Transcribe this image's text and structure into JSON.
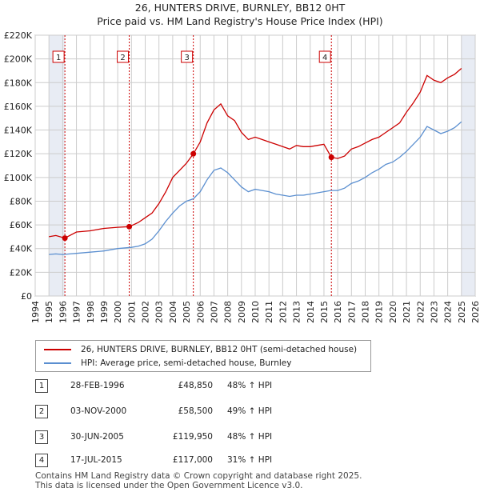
{
  "chart_data": {
    "type": "line",
    "title": "26, HUNTERS DRIVE, BURNLEY, BB12 0HT",
    "subtitle": "Price paid vs. HM Land Registry's House Price Index (HPI)",
    "xlabel": "",
    "ylabel": "",
    "xlim": [
      1994,
      2026
    ],
    "ylim": [
      0,
      220000
    ],
    "y_ticks": [
      {
        "value": 0,
        "label": "£0"
      },
      {
        "value": 20000,
        "label": "£20K"
      },
      {
        "value": 40000,
        "label": "£40K"
      },
      {
        "value": 60000,
        "label": "£60K"
      },
      {
        "value": 80000,
        "label": "£80K"
      },
      {
        "value": 100000,
        "label": "£100K"
      },
      {
        "value": 120000,
        "label": "£120K"
      },
      {
        "value": 140000,
        "label": "£140K"
      },
      {
        "value": 160000,
        "label": "£160K"
      },
      {
        "value": 180000,
        "label": "£180K"
      },
      {
        "value": 200000,
        "label": "£200K"
      },
      {
        "value": 220000,
        "label": "£220K"
      }
    ],
    "x_ticks": [
      "1994",
      "1995",
      "1996",
      "1997",
      "1998",
      "1999",
      "2000",
      "2001",
      "2002",
      "2003",
      "2004",
      "2005",
      "2006",
      "2007",
      "2008",
      "2009",
      "2010",
      "2011",
      "2012",
      "2013",
      "2014",
      "2015",
      "2016",
      "2017",
      "2018",
      "2019",
      "2020",
      "2021",
      "2022",
      "2023",
      "2024",
      "2025",
      "2026"
    ],
    "grid": true,
    "legend_position": "bottom",
    "shaded_ranges": [
      {
        "from": 1995.0,
        "to": 1996.16
      },
      {
        "from": 2025.0,
        "to": 2026.0
      }
    ],
    "series": [
      {
        "name": "26, HUNTERS DRIVE, BURNLEY, BB12 0HT (semi-detached house)",
        "color": "#cc0000",
        "x": [
          1995.0,
          1995.5,
          1996.16,
          1997.0,
          1998.0,
          1999.0,
          2000.0,
          2000.84,
          2001.5,
          2002.0,
          2002.5,
          2003.0,
          2003.5,
          2004.0,
          2004.5,
          2005.0,
          2005.5,
          2006.0,
          2006.5,
          2007.0,
          2007.5,
          2008.0,
          2008.5,
          2009.0,
          2009.5,
          2010.0,
          2010.5,
          2011.0,
          2011.5,
          2012.0,
          2012.5,
          2013.0,
          2013.5,
          2014.0,
          2014.5,
          2015.0,
          2015.54,
          2016.0,
          2016.5,
          2017.0,
          2017.5,
          2018.0,
          2018.5,
          2019.0,
          2019.5,
          2020.0,
          2020.5,
          2021.0,
          2021.5,
          2022.0,
          2022.5,
          2023.0,
          2023.5,
          2024.0,
          2024.5,
          2025.0
        ],
        "values": [
          50000,
          51000,
          48850,
          54000,
          55000,
          57000,
          58000,
          58500,
          62000,
          66000,
          70000,
          78000,
          88000,
          100000,
          106000,
          112000,
          119950,
          130000,
          146000,
          157000,
          162000,
          152000,
          148000,
          138000,
          132000,
          134000,
          132000,
          130000,
          128000,
          126000,
          124000,
          127000,
          126000,
          126000,
          127000,
          128000,
          117000,
          116000,
          118000,
          124000,
          126000,
          129000,
          132000,
          134000,
          138000,
          142000,
          146000,
          155000,
          163000,
          172000,
          186000,
          182000,
          180000,
          184000,
          187000,
          192000
        ]
      },
      {
        "name": "HPI: Average price, semi-detached house, Burnley",
        "color": "#5b8fd0",
        "x": [
          1995.0,
          1995.5,
          1996.0,
          1997.0,
          1998.0,
          1999.0,
          2000.0,
          2001.0,
          2001.5,
          2002.0,
          2002.5,
          2003.0,
          2003.5,
          2004.0,
          2004.5,
          2005.0,
          2005.5,
          2006.0,
          2006.5,
          2007.0,
          2007.5,
          2008.0,
          2008.5,
          2009.0,
          2009.5,
          2010.0,
          2010.5,
          2011.0,
          2011.5,
          2012.0,
          2012.5,
          2013.0,
          2013.5,
          2014.0,
          2014.5,
          2015.0,
          2015.5,
          2016.0,
          2016.5,
          2017.0,
          2017.5,
          2018.0,
          2018.5,
          2019.0,
          2019.5,
          2020.0,
          2020.5,
          2021.0,
          2021.5,
          2022.0,
          2022.5,
          2023.0,
          2023.5,
          2024.0,
          2024.5,
          2025.0
        ],
        "values": [
          35000,
          35500,
          35000,
          36000,
          37000,
          38000,
          40000,
          41000,
          42000,
          44000,
          48000,
          55000,
          63000,
          70000,
          76000,
          80000,
          82000,
          88000,
          98000,
          106000,
          108000,
          104000,
          98000,
          92000,
          88000,
          90000,
          89000,
          88000,
          86000,
          85000,
          84000,
          85000,
          85000,
          86000,
          87000,
          88000,
          89000,
          89000,
          91000,
          95000,
          97000,
          100000,
          104000,
          107000,
          111000,
          113000,
          117000,
          122000,
          128000,
          134000,
          143000,
          140000,
          137000,
          139000,
          142000,
          147000
        ]
      }
    ],
    "sales": [
      {
        "label": "1",
        "x": 1996.16,
        "value": 48850
      },
      {
        "label": "2",
        "x": 2000.84,
        "value": 58500
      },
      {
        "label": "3",
        "x": 2005.5,
        "value": 119950
      },
      {
        "label": "4",
        "x": 2015.54,
        "value": 117000
      }
    ]
  },
  "legend": {
    "property_label": "26, HUNTERS DRIVE, BURNLEY, BB12 0HT (semi-detached house)",
    "hpi_label": "HPI: Average price, semi-detached house, Burnley",
    "property_color": "#cc0000",
    "hpi_color": "#5b8fd0"
  },
  "transactions": [
    {
      "num": "1",
      "date": "28-FEB-1996",
      "price": "£48,850",
      "hpi": "48% ↑ HPI"
    },
    {
      "num": "2",
      "date": "03-NOV-2000",
      "price": "£58,500",
      "hpi": "49% ↑ HPI"
    },
    {
      "num": "3",
      "date": "30-JUN-2005",
      "price": "£119,950",
      "hpi": "48% ↑ HPI"
    },
    {
      "num": "4",
      "date": "17-JUL-2015",
      "price": "£117,000",
      "hpi": "31% ↑ HPI"
    }
  ],
  "footer": {
    "line1": "Contains HM Land Registry data © Crown copyright and database right 2025.",
    "line2": "This data is licensed under the Open Government Licence v3.0."
  }
}
